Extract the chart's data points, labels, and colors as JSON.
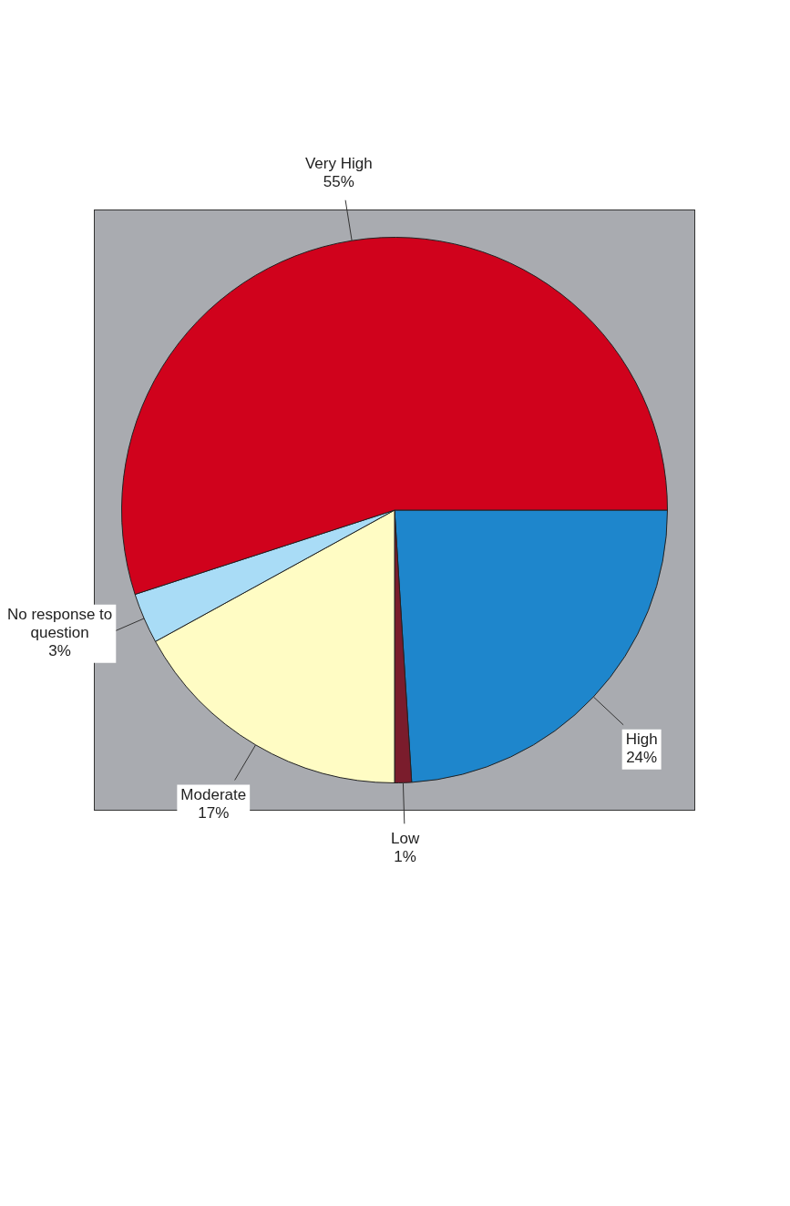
{
  "chart_data": {
    "type": "pie",
    "categories": [
      "High",
      "Low",
      "Moderate",
      "No response to question",
      "Very High"
    ],
    "values": [
      24,
      1,
      17,
      3,
      55
    ],
    "colors": [
      "#1e86cc",
      "#7a1c2c",
      "#fffcc4",
      "#a9dcf6",
      "#d0021c"
    ],
    "value_labels": [
      "24%",
      "1%",
      "17%",
      "3%",
      "55%"
    ]
  }
}
